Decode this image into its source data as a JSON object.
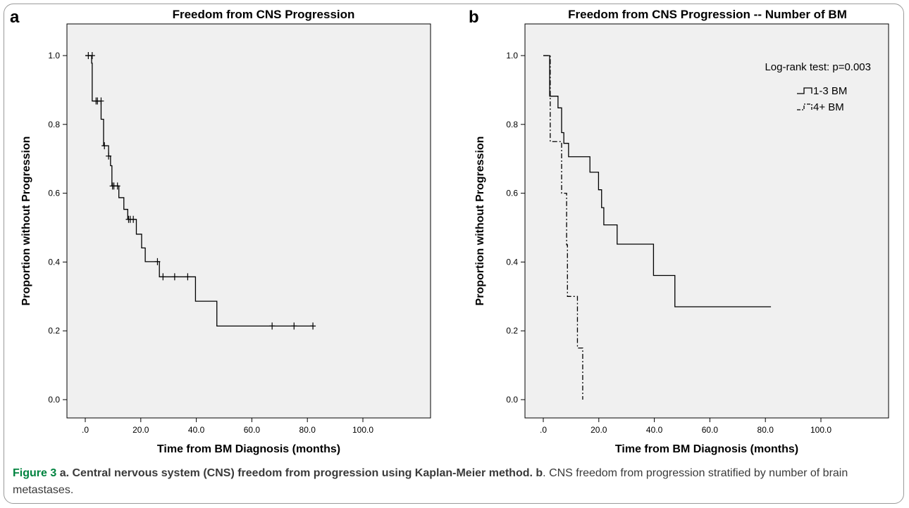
{
  "caption": {
    "figure_label": "Figure 3",
    "part_a_letter": "a",
    "part_a_text": ". Central nervous system (CNS) freedom from progression using Kaplan-Meier method.",
    "part_b_letter": "b",
    "part_b_text": ". CNS freedom from progression stratified by number of brain metastases."
  },
  "chart_data": [
    {
      "panel_label": "a",
      "type": "line",
      "subtype": "kaplan-meier",
      "title": "Freedom from CNS Progression",
      "xlabel": "Time from BM Diagnosis (months)",
      "ylabel": "Proportion without Progression",
      "xlim": [
        0,
        100
      ],
      "ylim": [
        0,
        1
      ],
      "xticks": [
        ".0",
        "20.0",
        "40.0",
        "60.0",
        "80.0",
        "100.0"
      ],
      "yticks": [
        "0.0",
        "0.2",
        "0.4",
        "0.6",
        "0.8",
        "1.0"
      ],
      "grid": false,
      "background": "#f0f0f0",
      "series": [
        {
          "color": "#000000",
          "dash": "solid",
          "steps": [
            [
              0,
              1.0
            ],
            [
              2.3,
              0.978
            ],
            [
              2.5,
              0.868
            ],
            [
              5.7,
              0.815
            ],
            [
              6.6,
              0.738
            ],
            [
              8.4,
              0.708
            ],
            [
              9.1,
              0.68
            ],
            [
              9.6,
              0.621
            ],
            [
              12.1,
              0.587
            ],
            [
              13.9,
              0.553
            ],
            [
              15.3,
              0.524
            ],
            [
              18.4,
              0.481
            ],
            [
              20.3,
              0.441
            ],
            [
              21.6,
              0.401
            ],
            [
              26.7,
              0.357
            ],
            [
              39.7,
              0.286
            ],
            [
              47.4,
              0.214
            ],
            [
              82.0,
              0.214
            ]
          ],
          "censored": [
            [
              1.1,
              1.0
            ],
            [
              2.5,
              1.0
            ],
            [
              3.9,
              0.868
            ],
            [
              4.4,
              0.868
            ],
            [
              5.7,
              0.868
            ],
            [
              6.9,
              0.738
            ],
            [
              8.4,
              0.708
            ],
            [
              9.8,
              0.621
            ],
            [
              10.3,
              0.621
            ],
            [
              11.6,
              0.621
            ],
            [
              15.6,
              0.524
            ],
            [
              16.2,
              0.524
            ],
            [
              17.3,
              0.524
            ],
            [
              26.0,
              0.401
            ],
            [
              28.0,
              0.357
            ],
            [
              32.2,
              0.357
            ],
            [
              36.9,
              0.357
            ],
            [
              67.3,
              0.214
            ],
            [
              75.2,
              0.214
            ],
            [
              82.0,
              0.214
            ]
          ]
        }
      ]
    },
    {
      "panel_label": "b",
      "type": "line",
      "subtype": "kaplan-meier",
      "title": "Freedom from CNS Progression -- Number of BM",
      "xlabel": "Time from BM Diagnosis (months)",
      "ylabel": "Proportion without Progression",
      "xlim": [
        0,
        100
      ],
      "ylim": [
        0,
        1
      ],
      "xticks": [
        ".0",
        "20.0",
        "40.0",
        "60.0",
        "80.0",
        "100.0"
      ],
      "yticks": [
        "0.0",
        "0.2",
        "0.4",
        "0.6",
        "0.8",
        "1.0"
      ],
      "grid": false,
      "background": "#f0f0f0",
      "annotation": "Log-rank test: p=0.003",
      "legend_position": "top-right",
      "series": [
        {
          "name": "1-3 BM",
          "color": "#000000",
          "dash": "solid",
          "steps": [
            [
              0,
              1.0
            ],
            [
              2.3,
              0.882
            ],
            [
              5.3,
              0.848
            ],
            [
              6.6,
              0.776
            ],
            [
              7.4,
              0.745
            ],
            [
              9.1,
              0.706
            ],
            [
              16.8,
              0.661
            ],
            [
              19.9,
              0.61
            ],
            [
              21.0,
              0.558
            ],
            [
              21.8,
              0.508
            ],
            [
              26.6,
              0.452
            ],
            [
              39.7,
              0.361
            ],
            [
              47.4,
              0.27
            ],
            [
              82.0,
              0.27
            ]
          ]
        },
        {
          "name": "4+ BM",
          "color": "#000000",
          "dash": "dashdot",
          "steps": [
            [
              0,
              1.0
            ],
            [
              2.5,
              0.75
            ],
            [
              6.6,
              0.6
            ],
            [
              8.4,
              0.45
            ],
            [
              8.7,
              0.3
            ],
            [
              12.3,
              0.15
            ],
            [
              14.2,
              0.0
            ]
          ]
        }
      ]
    }
  ]
}
